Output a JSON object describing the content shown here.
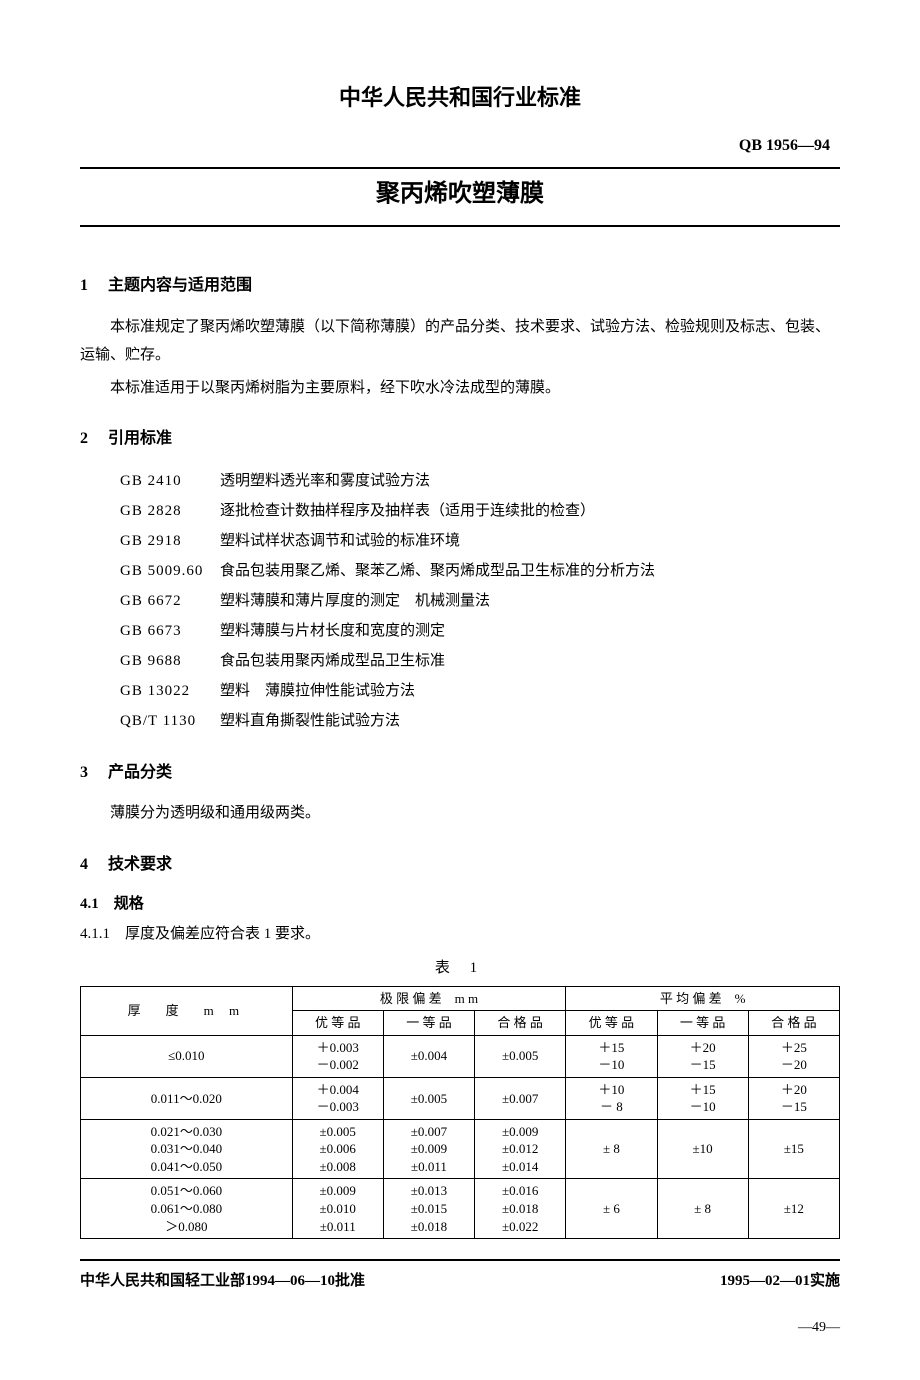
{
  "header": {
    "org_title": "中华人民共和国行业标准",
    "standard_code": "QB 1956—94",
    "doc_title": "聚丙烯吹塑薄膜"
  },
  "section1": {
    "num": "1",
    "title": "主题内容与适用范围",
    "p1": "本标准规定了聚丙烯吹塑薄膜（以下简称薄膜）的产品分类、技术要求、试验方法、检验规则及标志、包装、运输、贮存。",
    "p2": "本标准适用于以聚丙烯树脂为主要原料，经下吹水冷法成型的薄膜。"
  },
  "section2": {
    "num": "2",
    "title": "引用标准",
    "refs": [
      {
        "code": "GB 2410",
        "text": "透明塑料透光率和雾度试验方法"
      },
      {
        "code": "GB 2828",
        "text": "逐批检查计数抽样程序及抽样表（适用于连续批的检查）"
      },
      {
        "code": "GB 2918",
        "text": "塑料试样状态调节和试验的标准环境"
      },
      {
        "code": "GB 5009.60",
        "text": "食品包装用聚乙烯、聚苯乙烯、聚丙烯成型品卫生标准的分析方法"
      },
      {
        "code": "GB 6672",
        "text": "塑料薄膜和薄片厚度的测定　机械测量法"
      },
      {
        "code": "GB 6673",
        "text": "塑料薄膜与片材长度和宽度的测定"
      },
      {
        "code": "GB 9688",
        "text": "食品包装用聚丙烯成型品卫生标准"
      },
      {
        "code": "GB 13022",
        "text": "塑料　薄膜拉伸性能试验方法"
      },
      {
        "code": "QB/T 1130",
        "text": "塑料直角撕裂性能试验方法"
      }
    ]
  },
  "section3": {
    "num": "3",
    "title": "产品分类",
    "p1": "薄膜分为透明级和通用级两类。"
  },
  "section4": {
    "num": "4",
    "title": "技术要求",
    "sub41": "4.1　规格",
    "sub411": "4.1.1　厚度及偏差应符合表 1 要求。"
  },
  "table1": {
    "caption": "表 1",
    "header_group1": "极 限 偏 差　m m",
    "header_group2": "平 均 偏 差　%",
    "col_thickness": "厚　度　m m",
    "grades": {
      "a": "优 等 品",
      "b": "一 等 品",
      "c": "合 格 品"
    },
    "rows": [
      {
        "thickness": "≤0.010",
        "lim_a": "＋0.003\n－0.002",
        "lim_b": "±0.004",
        "lim_c": "±0.005",
        "avg_a": "＋15\n－10",
        "avg_b": "＋20\n－15",
        "avg_c": "＋25\n－20"
      },
      {
        "thickness": "0.011～0.020",
        "lim_a": "＋0.004\n－0.003",
        "lim_b": "±0.005",
        "lim_c": "±0.007",
        "avg_a": "＋10\n－ 8",
        "avg_b": "＋15\n－10",
        "avg_c": "＋20\n－15"
      },
      {
        "thickness": "0.021～0.030\n0.031～0.040\n0.041～0.050",
        "lim_a": "±0.005\n±0.006\n±0.008",
        "lim_b": "±0.007\n±0.009\n±0.011",
        "lim_c": "±0.009\n±0.012\n±0.014",
        "avg_a": "± 8",
        "avg_b": "±10",
        "avg_c": "±15"
      },
      {
        "thickness": "0.051～0.060\n0.061～0.080\n＞0.080",
        "lim_a": "±0.009\n±0.010\n±0.011",
        "lim_b": "±0.013\n±0.015\n±0.018",
        "lim_c": "±0.016\n±0.018\n±0.022",
        "avg_a": "± 6",
        "avg_b": "± 8",
        "avg_c": "±12"
      }
    ]
  },
  "footer": {
    "approval": "中华人民共和国轻工业部1994—06—10批准",
    "effective": "1995—02—01实施",
    "page": "—49—"
  }
}
